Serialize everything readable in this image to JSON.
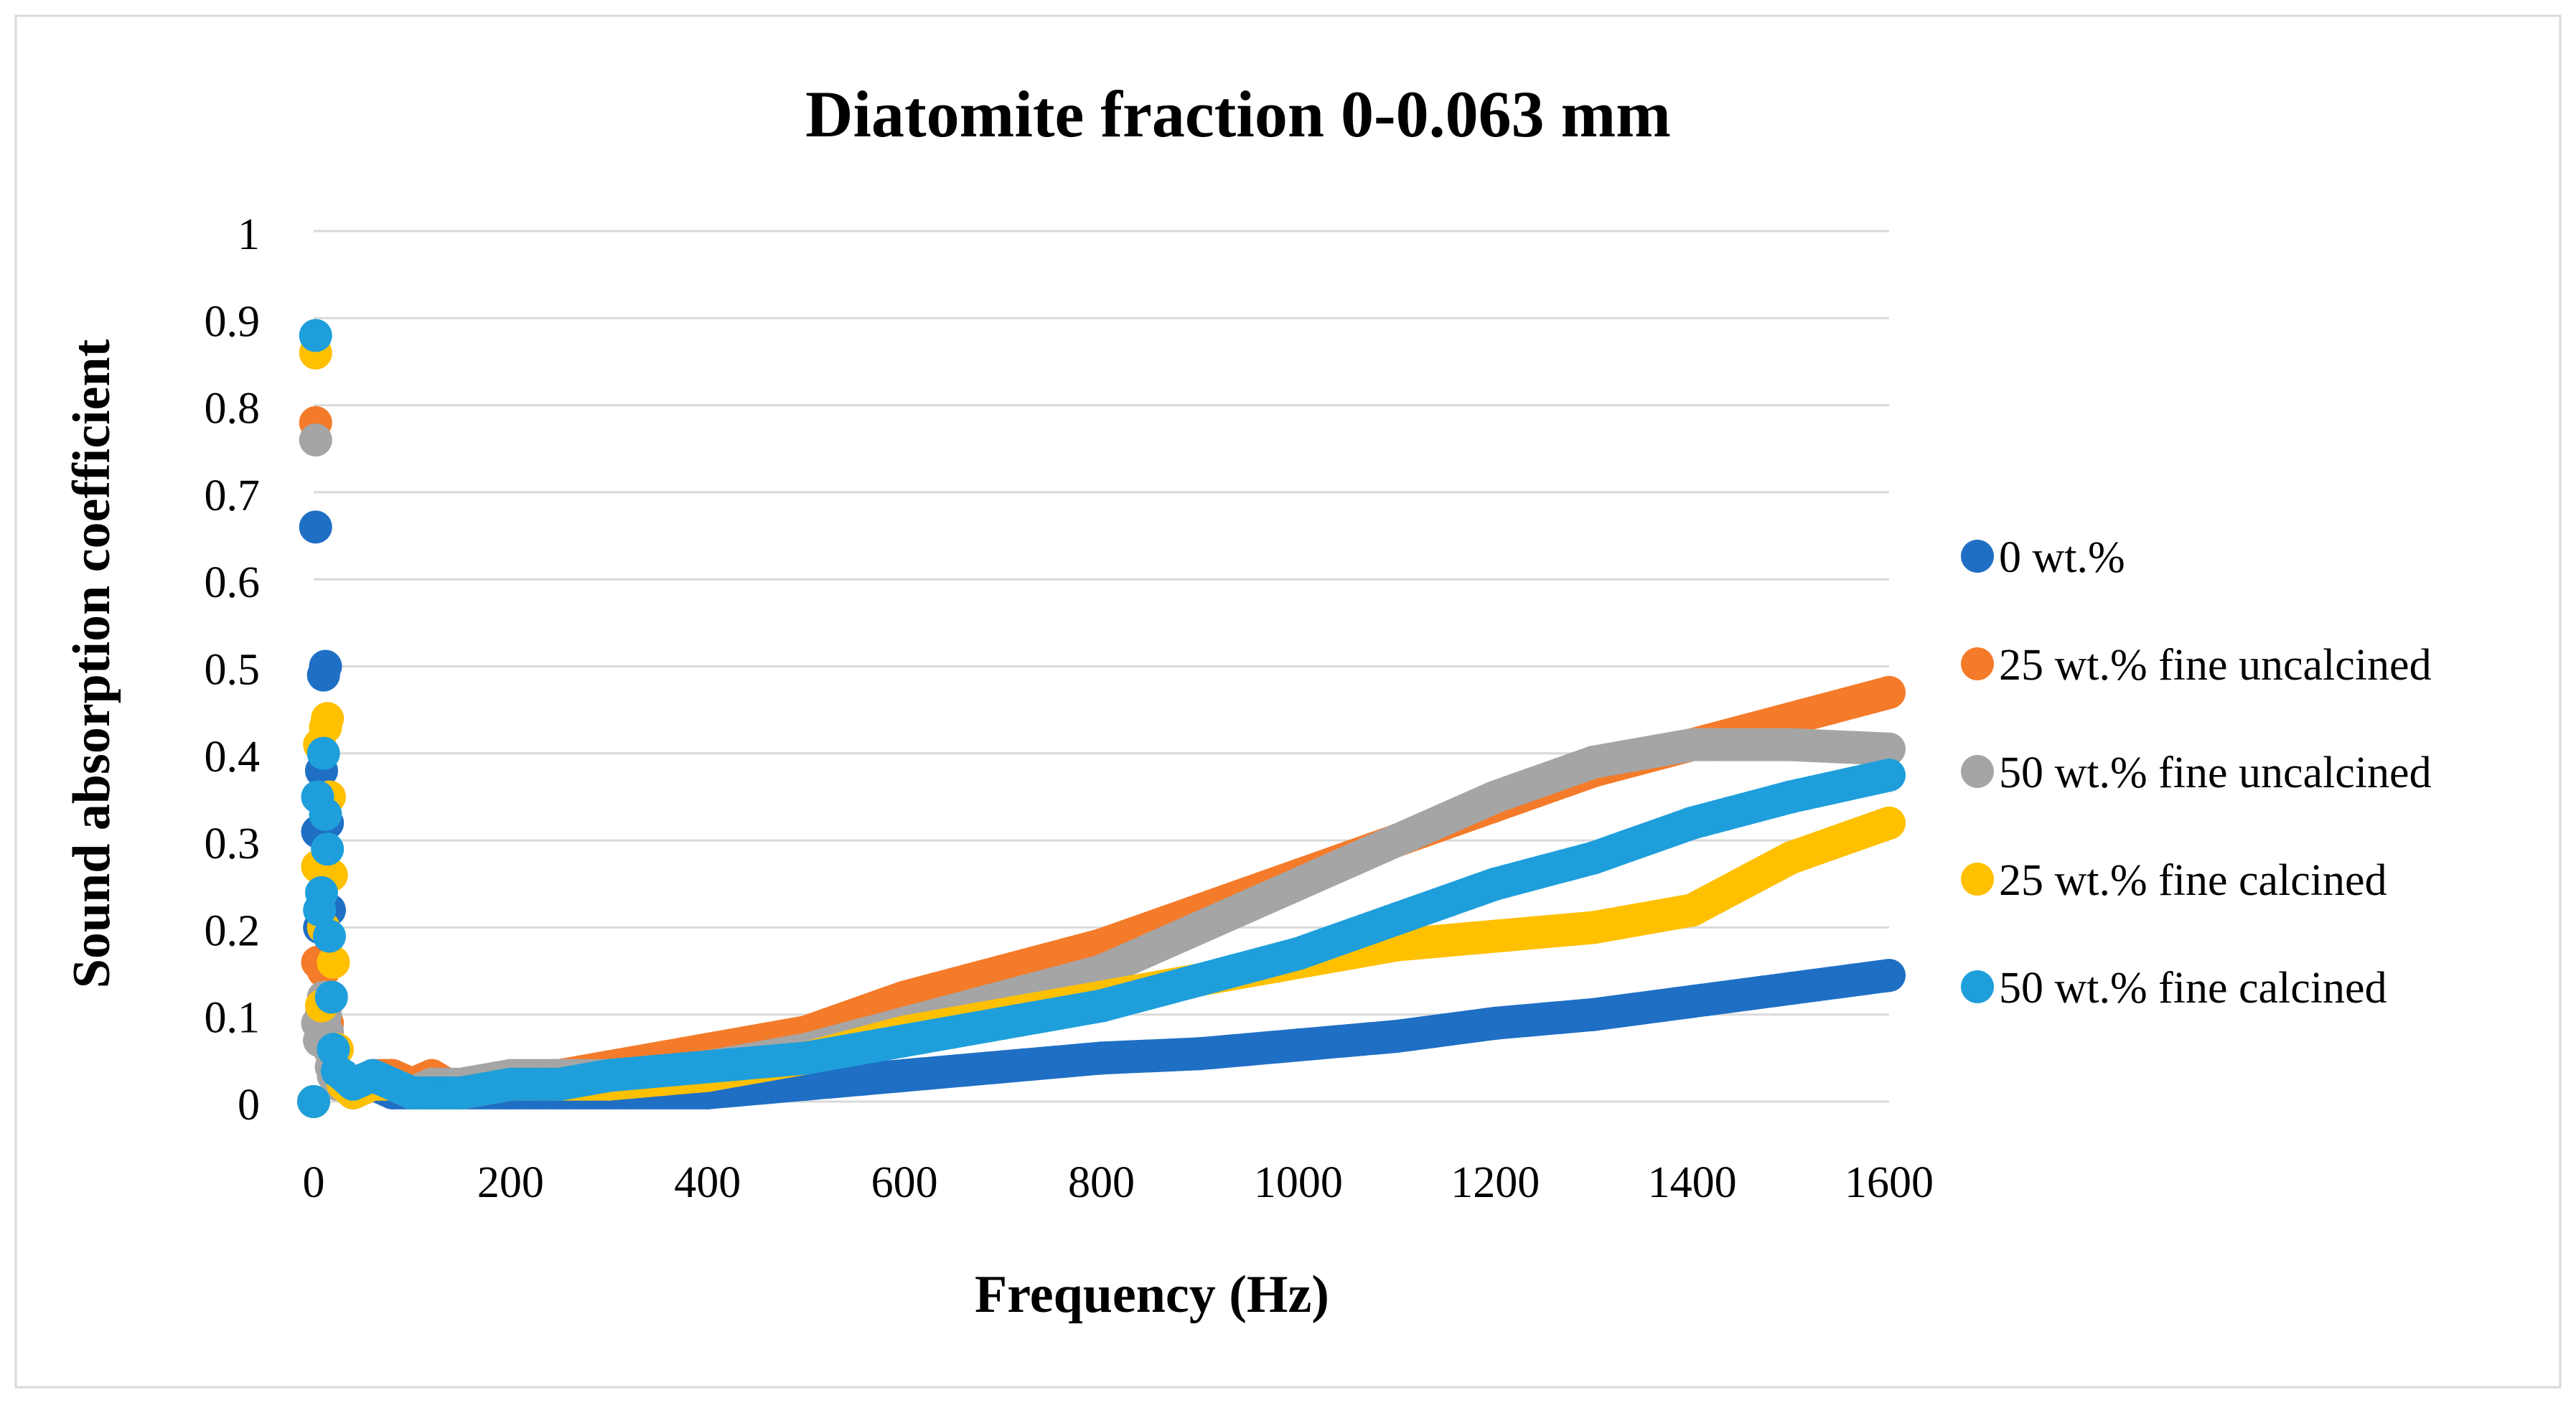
{
  "chart_data": {
    "type": "scatter",
    "title": "Diatomite fraction 0-0.063 mm",
    "xlabel": "Frequency (Hz)",
    "ylabel": "Sound absorption coefficient",
    "xlim": [
      0,
      1600
    ],
    "ylim": [
      0,
      1
    ],
    "x_ticks": [
      "0",
      "200",
      "400",
      "600",
      "800",
      "1000",
      "1200",
      "1400",
      "1600"
    ],
    "y_ticks": [
      "0",
      "0.1",
      "0.2",
      "0.3",
      "0.4",
      "0.5",
      "0.6",
      "0.7",
      "0.8",
      "0.9",
      "1"
    ],
    "grid": "horizontal",
    "legend_position": "right",
    "series": [
      {
        "name": "0 wt.%",
        "color": "#1F6FC5",
        "x": [
          0,
          2,
          4,
          6,
          8,
          10,
          12,
          14,
          16,
          18,
          20,
          24,
          30,
          40,
          60,
          80,
          100,
          120,
          150,
          200,
          250,
          300,
          400,
          500,
          600,
          700,
          800,
          900,
          1000,
          1100,
          1200,
          1300,
          1400,
          1500,
          1600
        ],
        "y": [
          0.0,
          0.66,
          0.31,
          0.2,
          0.38,
          0.49,
          0.5,
          0.32,
          0.22,
          0.12,
          0.05,
          0.03,
          0.02,
          0.01,
          0.02,
          0.01,
          0.01,
          0.01,
          0.01,
          0.01,
          0.01,
          0.01,
          0.01,
          0.02,
          0.03,
          0.04,
          0.05,
          0.055,
          0.065,
          0.075,
          0.09,
          0.1,
          0.115,
          0.13,
          0.145
        ]
      },
      {
        "name": "25 wt.% fine uncalcined",
        "color": "#F47B2A",
        "x": [
          0,
          2,
          4,
          6,
          8,
          10,
          12,
          14,
          16,
          18,
          20,
          24,
          30,
          40,
          60,
          80,
          100,
          120,
          150,
          200,
          250,
          300,
          400,
          500,
          600,
          700,
          800,
          900,
          1000,
          1100,
          1200,
          1300,
          1400,
          1500,
          1600
        ],
        "y": [
          0.0,
          0.78,
          0.16,
          0.07,
          0.1,
          0.15,
          0.12,
          0.09,
          0.06,
          0.04,
          0.03,
          0.02,
          0.02,
          0.02,
          0.03,
          0.03,
          0.02,
          0.03,
          0.01,
          0.02,
          0.03,
          0.04,
          0.06,
          0.08,
          0.12,
          0.15,
          0.18,
          0.22,
          0.26,
          0.3,
          0.34,
          0.38,
          0.41,
          0.44,
          0.47
        ]
      },
      {
        "name": "50 wt.% fine uncalcined",
        "color": "#A5A5A5",
        "x": [
          0,
          2,
          4,
          6,
          8,
          10,
          12,
          14,
          16,
          18,
          20,
          24,
          30,
          40,
          60,
          80,
          100,
          120,
          150,
          200,
          250,
          300,
          400,
          500,
          600,
          700,
          800,
          900,
          1000,
          1100,
          1200,
          1300,
          1400,
          1500,
          1600
        ],
        "y": [
          0.0,
          0.76,
          0.09,
          0.07,
          0.1,
          0.12,
          0.1,
          0.08,
          0.06,
          0.04,
          0.03,
          0.02,
          0.02,
          0.02,
          0.02,
          0.02,
          0.01,
          0.02,
          0.02,
          0.03,
          0.03,
          0.03,
          0.04,
          0.06,
          0.09,
          0.12,
          0.15,
          0.2,
          0.25,
          0.3,
          0.35,
          0.39,
          0.41,
          0.41,
          0.405
        ]
      },
      {
        "name": "25 wt.% fine calcined",
        "color": "#FFC000",
        "x": [
          0,
          2,
          4,
          6,
          8,
          10,
          12,
          14,
          16,
          18,
          20,
          24,
          30,
          40,
          60,
          80,
          100,
          120,
          150,
          200,
          250,
          300,
          400,
          500,
          600,
          700,
          800,
          900,
          1000,
          1100,
          1200,
          1300,
          1400,
          1500,
          1600
        ],
        "y": [
          0.0,
          0.86,
          0.27,
          0.41,
          0.11,
          0.2,
          0.43,
          0.44,
          0.35,
          0.26,
          0.16,
          0.06,
          0.02,
          0.01,
          0.02,
          0.02,
          0.01,
          0.01,
          0.01,
          0.02,
          0.02,
          0.02,
          0.03,
          0.05,
          0.08,
          0.1,
          0.12,
          0.14,
          0.16,
          0.18,
          0.19,
          0.2,
          0.22,
          0.28,
          0.32
        ]
      },
      {
        "name": "50 wt.% fine calcined",
        "color": "#1E9FDB",
        "x": [
          0,
          2,
          4,
          6,
          8,
          10,
          12,
          14,
          16,
          18,
          20,
          24,
          30,
          40,
          60,
          80,
          100,
          120,
          150,
          200,
          250,
          300,
          400,
          500,
          600,
          700,
          800,
          900,
          1000,
          1100,
          1200,
          1300,
          1400,
          1500,
          1600
        ],
        "y": [
          0.0,
          0.88,
          0.35,
          0.22,
          0.24,
          0.4,
          0.33,
          0.29,
          0.19,
          0.12,
          0.06,
          0.035,
          0.03,
          0.02,
          0.03,
          0.02,
          0.01,
          0.01,
          0.01,
          0.02,
          0.02,
          0.03,
          0.04,
          0.05,
          0.07,
          0.09,
          0.11,
          0.14,
          0.17,
          0.21,
          0.25,
          0.28,
          0.32,
          0.35,
          0.375
        ]
      }
    ]
  }
}
